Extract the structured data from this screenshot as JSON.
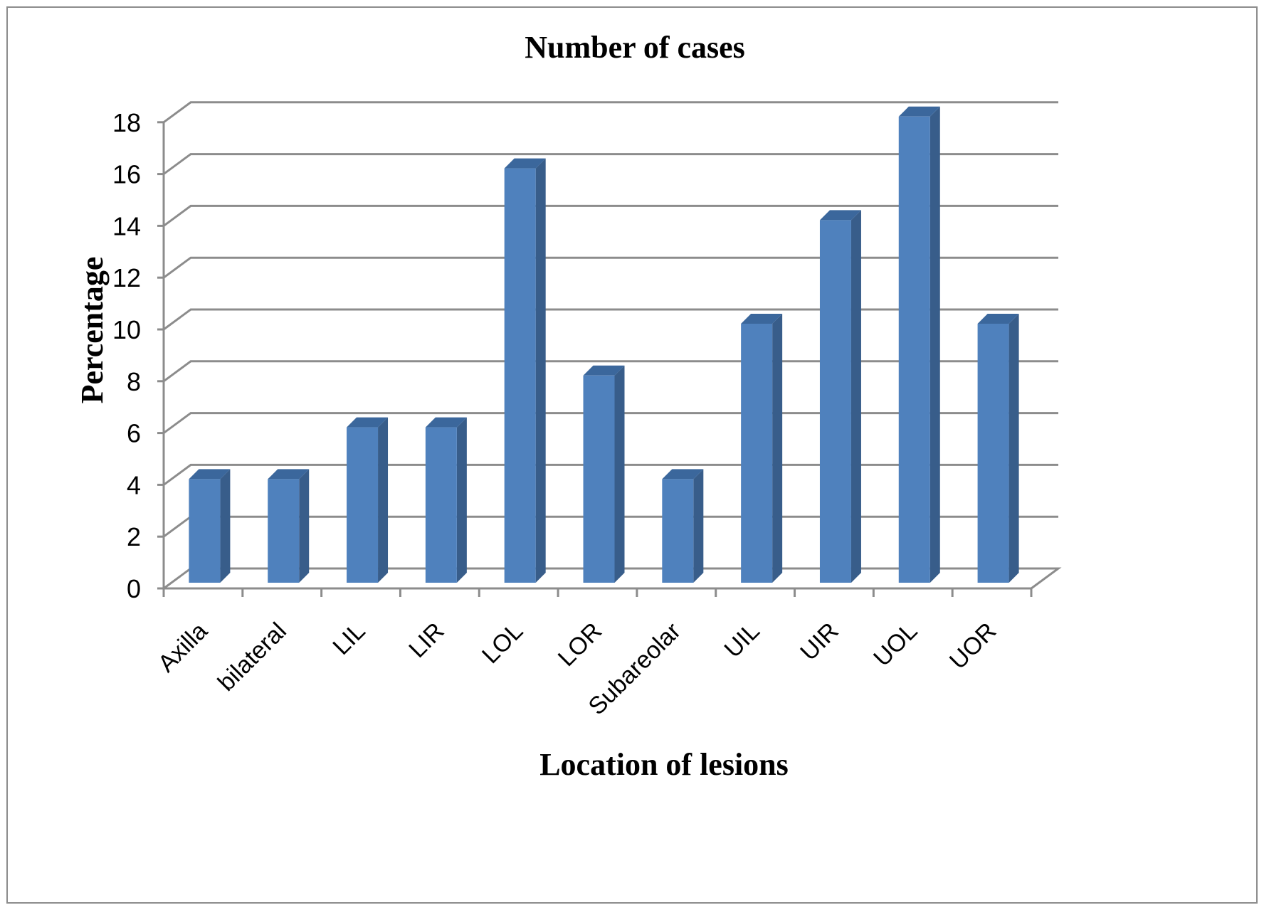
{
  "chart_data": {
    "type": "bar",
    "title": "Number of cases",
    "xlabel": "Location of lesions",
    "ylabel": "Percentage",
    "categories": [
      "Axilla",
      "bilateral",
      "LIL",
      "LIR",
      "LOL",
      "LOR",
      "Subareolar",
      "UIL",
      "UIR",
      "UOL",
      "UOR"
    ],
    "values": [
      4,
      4,
      6,
      6,
      16,
      8,
      4,
      10,
      14,
      18,
      10
    ],
    "ylim": [
      0,
      18
    ],
    "yticks": [
      "0",
      "2",
      "4",
      "6",
      "8",
      "10",
      "12",
      "14",
      "16",
      "18"
    ],
    "grid": true,
    "style": "3d-column",
    "colors": {
      "bar_front": "#4f81bd",
      "bar_side": "#385d8a",
      "bar_top": "#3b679c",
      "grid": "#8c8c8c"
    }
  }
}
